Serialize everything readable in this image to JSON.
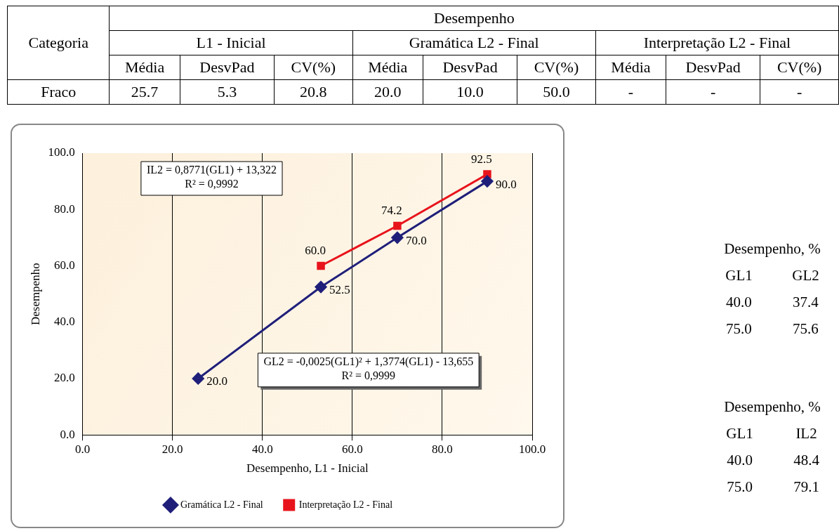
{
  "chart_data": [
    {
      "type": "other",
      "annotations": [
        "Categoria",
        "Desempenho",
        "L1 - Inicial",
        "Gramática L2 - Final",
        "Interpretação L2 - Final",
        "Média",
        "DesvPad",
        "CV(%)",
        "Média",
        "DesvPad",
        "CV(%)",
        "Média",
        "DesvPad",
        "CV(%)",
        "Fraco",
        "25.7",
        "5.3",
        "20.8",
        "20.0",
        "10.0",
        "50.0",
        "-",
        "-",
        "-"
      ]
    },
    {
      "type": "line",
      "xlabel": "Desempenho, L1 - Inicial",
      "ylabel": "Desempenho",
      "xlim": [
        0,
        100
      ],
      "xticks": [
        {
          "value": 0,
          "label": "0.0"
        },
        {
          "value": 20,
          "label": "20.0"
        },
        {
          "value": 40,
          "label": "40.0"
        },
        {
          "value": 60,
          "label": "60.0"
        },
        {
          "value": 80,
          "label": "80.0"
        },
        {
          "value": 100,
          "label": "100.0"
        }
      ],
      "ylim": [
        0,
        100
      ],
      "yticks": [
        {
          "value": 0,
          "label": "0.0"
        },
        {
          "value": 20,
          "label": "20.0"
        },
        {
          "value": 40,
          "label": "40.0"
        },
        {
          "value": 60,
          "label": "60.0"
        },
        {
          "value": 80,
          "label": "80.0"
        },
        {
          "value": 100,
          "label": "100.0"
        }
      ],
      "grid": "x",
      "legend": "bottom",
      "series": [
        {
          "name": "Gramática L2 - Final",
          "color": "#1f1f7a",
          "marker": "diamond",
          "x": [
            25.7,
            53,
            70,
            90
          ],
          "values": [
            20.0,
            52.5,
            70.0,
            90.0
          ],
          "value_labels": [
            "20.0",
            "52.5",
            "70.0",
            "90.0"
          ]
        },
        {
          "name": "Interpretação L2 - Final",
          "color": "#e8141c",
          "marker": "square",
          "x": [
            53,
            70,
            90
          ],
          "values": [
            60.0,
            74.2,
            92.5
          ],
          "value_labels": [
            "60.0",
            "74.2",
            "92.5"
          ]
        }
      ],
      "annotations": [
        "IL2 = 0,8771(GL1) + 13,322\nR² = 0,9992",
        "GL2 = -0,0025(GL1)² + 1,3774(GL1) - 13,655\nR² = 0,9999"
      ]
    },
    {
      "type": "other",
      "annotations": [
        "Desempenho, %",
        "GL1",
        "GL2",
        "40.0",
        "37.4",
        "75.0",
        "75.6",
        "Desempenho, %",
        "GL1",
        "IL2",
        "40.0",
        "48.4",
        "75.0",
        "79.1"
      ]
    }
  ]
}
